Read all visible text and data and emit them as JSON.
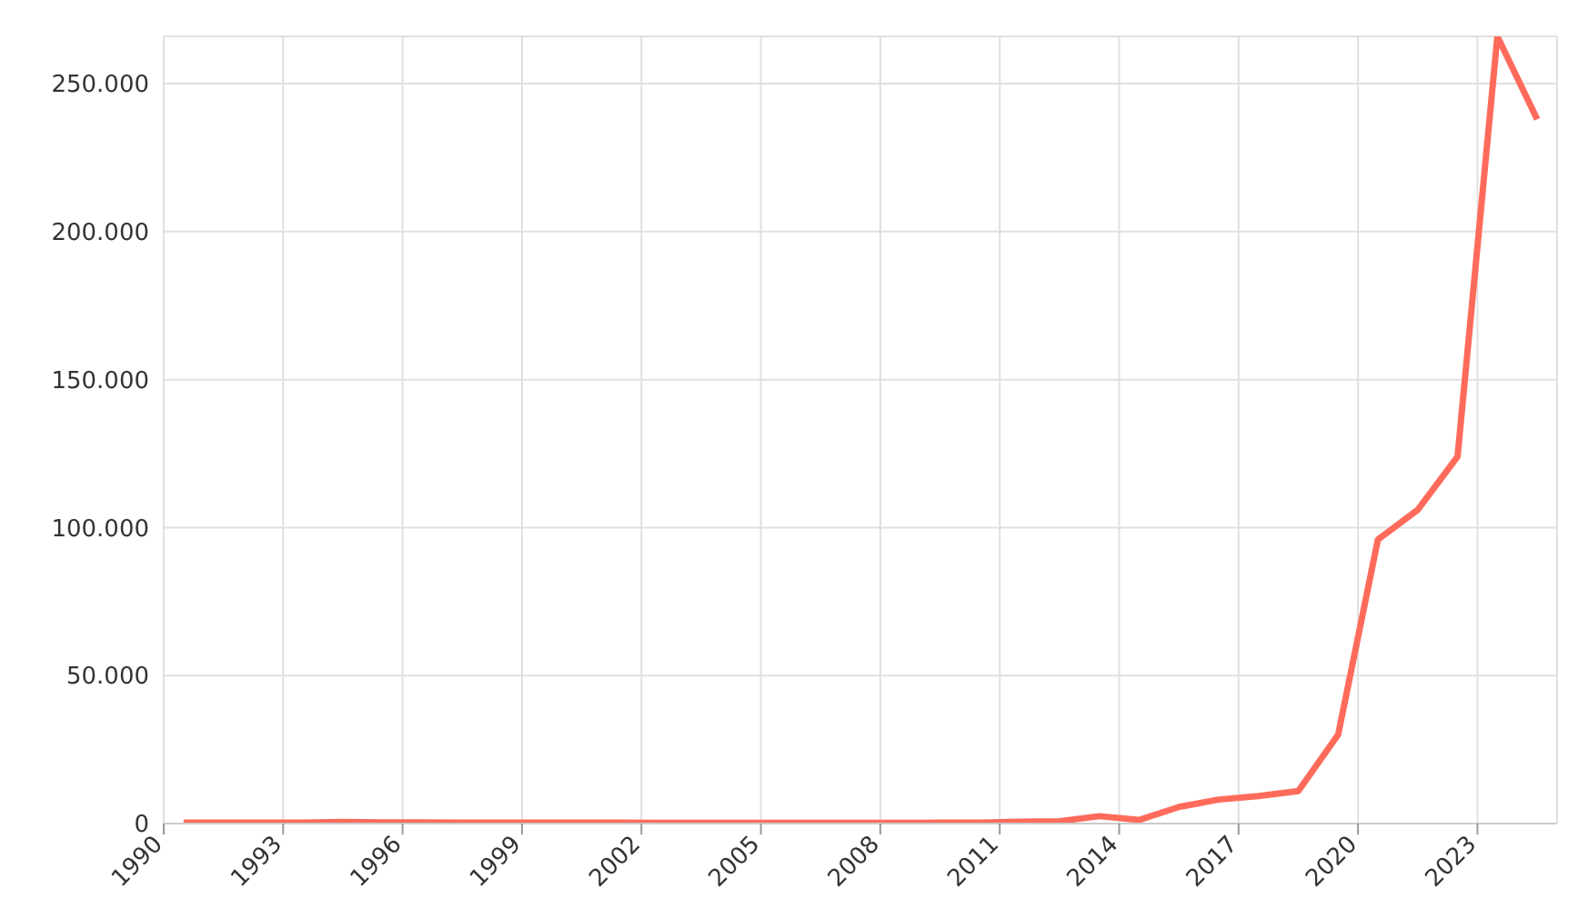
{
  "chart_data": {
    "type": "line",
    "x": [
      1990.5,
      1991.5,
      1992.5,
      1993.5,
      1994.5,
      1995.5,
      1996.5,
      1997.5,
      1998.5,
      1999.5,
      2000.5,
      2001.5,
      2002.5,
      2003.5,
      2004.5,
      2005.5,
      2006.5,
      2007.5,
      2008.5,
      2009.5,
      2010.5,
      2011.5,
      2012.5,
      2013.5,
      2014.5,
      2015.5,
      2016.5,
      2017.5,
      2018.5,
      2019.5,
      2020.5,
      2021.5,
      2022.5,
      2023.5,
      2024.5
    ],
    "series": [
      {
        "color": "#ff6b5b",
        "values": [
          300,
          300,
          300,
          300,
          500,
          400,
          400,
          300,
          300,
          300,
          300,
          300,
          200,
          200,
          200,
          200,
          200,
          200,
          200,
          300,
          300,
          600,
          800,
          2500,
          1200,
          5600,
          8100,
          9300,
          11000,
          30000,
          96000,
          106000,
          124000,
          266000,
          238000
        ]
      }
    ],
    "xlim": [
      1990,
      2025
    ],
    "xticks": [
      1990,
      1993,
      1996,
      1999,
      2002,
      2005,
      2008,
      2011,
      2014,
      2017,
      2020,
      2023
    ],
    "ylim": [
      0,
      266000
    ],
    "yticks": [
      {
        "value": 0,
        "label": "0"
      },
      {
        "value": 50000,
        "label": "50.000"
      },
      {
        "value": 100000,
        "label": "100.000"
      },
      {
        "value": 150000,
        "label": "150.000"
      },
      {
        "value": 200000,
        "label": "200.000"
      },
      {
        "value": 250000,
        "label": "250.000"
      }
    ],
    "grid": true,
    "legend": false,
    "marker": "none",
    "line_style": "solid"
  }
}
